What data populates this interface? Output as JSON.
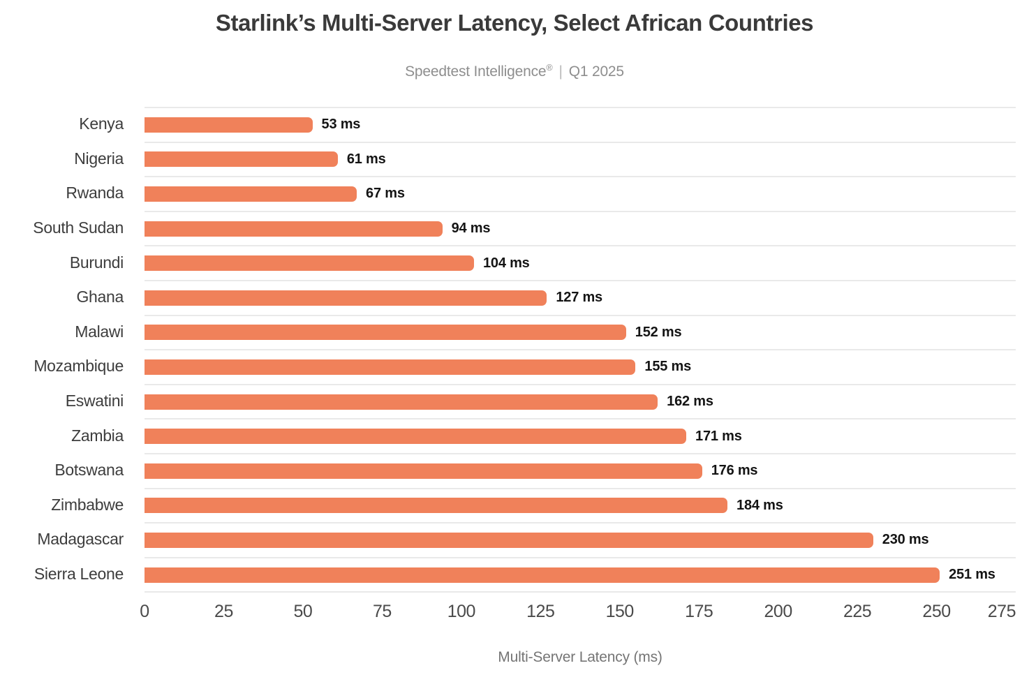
{
  "header": {
    "title": "Starlink’s Multi-Server Latency, Select African Countries",
    "subtitle_brand": "Speedtest Intelligence",
    "subtitle_reg": "®",
    "subtitle_divider": "|",
    "subtitle_period": "Q1 2025"
  },
  "chart_data": {
    "type": "bar",
    "orientation": "horizontal",
    "title": "Starlink’s Multi-Server Latency, Select African Countries",
    "subtitle": "Speedtest Intelligence® | Q1 2025",
    "categories": [
      "Kenya",
      "Nigeria",
      "Rwanda",
      "South Sudan",
      "Burundi",
      "Ghana",
      "Malawi",
      "Mozambique",
      "Eswatini",
      "Zambia",
      "Botswana",
      "Zimbabwe",
      "Madagascar",
      "Sierra Leone"
    ],
    "values": [
      53,
      61,
      67,
      94,
      104,
      127,
      152,
      155,
      162,
      171,
      176,
      184,
      230,
      251
    ],
    "value_suffix": " ms",
    "xlabel": "Multi-Server Latency (ms)",
    "ylabel": "",
    "xlim": [
      0,
      275
    ],
    "xticks": [
      0,
      25,
      50,
      75,
      100,
      125,
      150,
      175,
      200,
      225,
      250,
      275
    ],
    "legend": "none",
    "grid": "row-separator-lines",
    "bar_color": "#F0815A",
    "separator_color": "#e9e9e9",
    "value_label_color": "#141414",
    "category_label_color": "#3d3d3d",
    "tick_label_color": "#4a4a4a",
    "title_color": "#3a3a3a",
    "subtitle_color": "#8e8e8e",
    "axis_label_color": "#757575"
  }
}
